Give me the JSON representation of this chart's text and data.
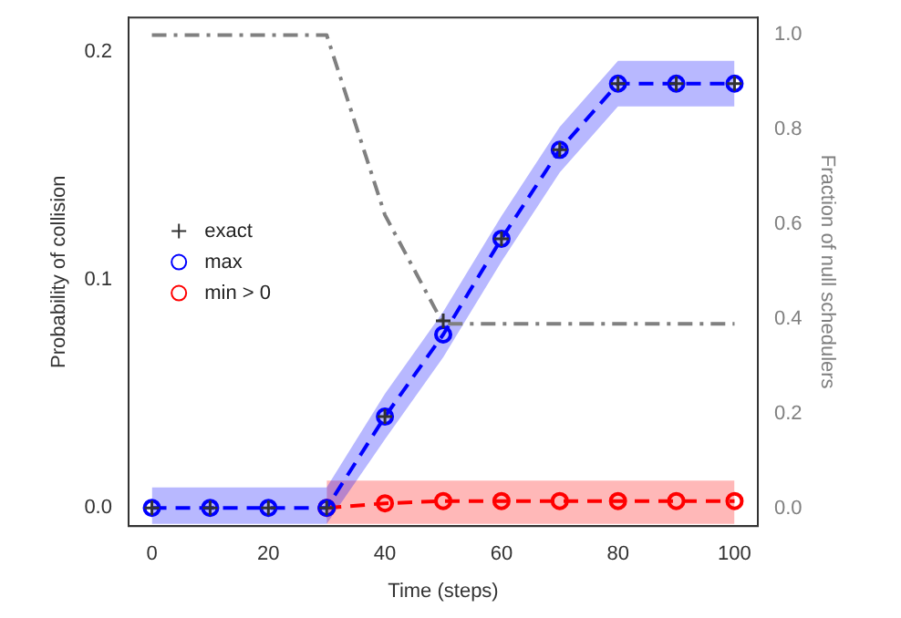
{
  "chart_data": {
    "type": "line",
    "xlabel": "Time (steps)",
    "ylabel": "Probability of collision",
    "y2label": "Fraction of null schedulers",
    "x": [
      0,
      10,
      20,
      30,
      40,
      50,
      60,
      70,
      80,
      90,
      100
    ],
    "series": [
      {
        "name": "exact",
        "type": "scatter",
        "marker": "cross",
        "color": "#333333",
        "values": [
          0,
          0,
          0,
          0,
          0.04,
          0.082,
          0.118,
          0.157,
          0.186,
          0.186,
          0.186
        ]
      },
      {
        "name": "max",
        "type": "line",
        "marker": "circle",
        "line_style": "dashed",
        "color": "#0000ff",
        "values": [
          0,
          0,
          0,
          0,
          0.04,
          0.076,
          0.118,
          0.157,
          0.186,
          0.186,
          0.186
        ],
        "lower": [
          -0.007,
          -0.007,
          -0.007,
          -0.007,
          0.03,
          0.066,
          0.108,
          0.147,
          0.176,
          0.176,
          0.176
        ],
        "upper": [
          0.009,
          0.009,
          0.009,
          0.009,
          0.05,
          0.086,
          0.128,
          0.167,
          0.196,
          0.196,
          0.196
        ]
      },
      {
        "name": "min > 0",
        "type": "line",
        "marker": "circle",
        "line_style": "dashed",
        "color": "#ff0000",
        "values": [
          null,
          null,
          null,
          0,
          0.002,
          0.003,
          0.003,
          0.003,
          0.003,
          0.003,
          0.003
        ],
        "lower": [
          null,
          null,
          null,
          -0.007,
          -0.007,
          -0.007,
          -0.007,
          -0.007,
          -0.007,
          -0.007,
          -0.007
        ],
        "upper": [
          null,
          null,
          null,
          0.012,
          0.012,
          0.012,
          0.012,
          0.012,
          0.012,
          0.012,
          0.012
        ]
      },
      {
        "type": "line",
        "axis": "y2",
        "marker": "none",
        "line_style": "dashdot",
        "color": "#808080",
        "values": [
          1,
          1,
          1,
          1,
          0.62,
          0.39,
          0.39,
          0.39,
          0.39,
          0.39,
          0.39
        ]
      }
    ],
    "xlim": [
      -4,
      104
    ],
    "xticks": [
      0,
      20,
      40,
      60,
      80,
      100
    ],
    "ylim": [
      -0.008,
      0.215
    ],
    "yticks": [
      {
        "value": 0,
        "label": "0.0"
      },
      {
        "value": 0.1,
        "label": "0.1"
      },
      {
        "value": 0.2,
        "label": "0.2"
      }
    ],
    "y2lim": [
      -0.037,
      1.037
    ],
    "y2ticks": [
      {
        "value": 0,
        "label": "0.0"
      },
      {
        "value": 0.2,
        "label": "0.2"
      },
      {
        "value": 0.4,
        "label": "0.4"
      },
      {
        "value": 0.6,
        "label": "0.6"
      },
      {
        "value": 0.8,
        "label": "0.8"
      },
      {
        "value": 1,
        "label": "1.0"
      }
    ],
    "grid": false,
    "legend": "center left"
  }
}
